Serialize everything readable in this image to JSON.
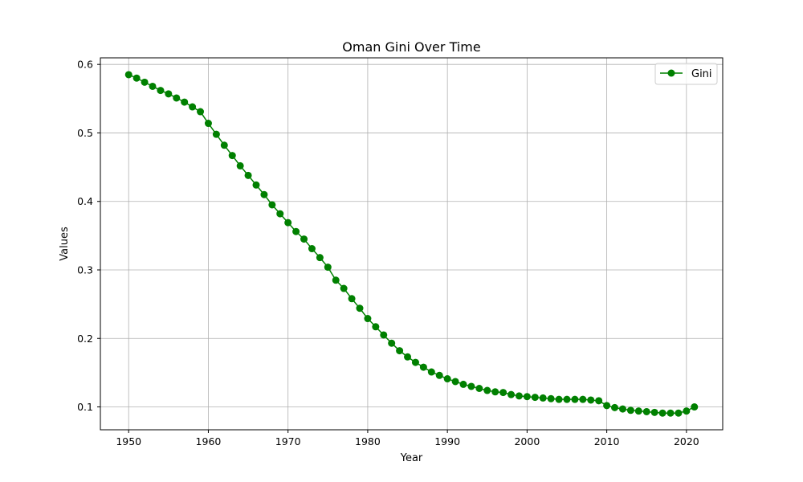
{
  "chart_data": {
    "type": "line",
    "title": "Oman Gini Over Time",
    "xlabel": "Year",
    "ylabel": "Values",
    "xlim": [
      1946.45,
      2024.55
    ],
    "ylim": [
      0.0666,
      0.6096
    ],
    "xticks": [
      1950,
      1960,
      1970,
      1980,
      1990,
      2000,
      2010,
      2020
    ],
    "yticks": [
      0.1,
      0.2,
      0.3,
      0.4,
      0.5,
      0.6
    ],
    "grid": true,
    "legend": {
      "placement": "top-right"
    },
    "series": [
      {
        "name": "Gini",
        "color": "#008000",
        "marker": "circle",
        "x": [
          1950,
          1951,
          1952,
          1953,
          1954,
          1955,
          1956,
          1957,
          1958,
          1959,
          1960,
          1961,
          1962,
          1963,
          1964,
          1965,
          1966,
          1967,
          1968,
          1969,
          1970,
          1971,
          1972,
          1973,
          1974,
          1975,
          1976,
          1977,
          1978,
          1979,
          1980,
          1981,
          1982,
          1983,
          1984,
          1985,
          1986,
          1987,
          1988,
          1989,
          1990,
          1991,
          1992,
          1993,
          1994,
          1995,
          1996,
          1997,
          1998,
          1999,
          2000,
          2001,
          2002,
          2003,
          2004,
          2005,
          2006,
          2007,
          2008,
          2009,
          2010,
          2011,
          2012,
          2013,
          2014,
          2015,
          2016,
          2017,
          2018,
          2019,
          2020,
          2021
        ],
        "y": [
          0.585,
          0.58,
          0.574,
          0.568,
          0.562,
          0.557,
          0.551,
          0.545,
          0.538,
          0.531,
          0.514,
          0.498,
          0.482,
          0.467,
          0.452,
          0.438,
          0.424,
          0.41,
          0.395,
          0.382,
          0.369,
          0.356,
          0.345,
          0.331,
          0.318,
          0.304,
          0.285,
          0.273,
          0.258,
          0.244,
          0.229,
          0.217,
          0.205,
          0.193,
          0.182,
          0.173,
          0.165,
          0.158,
          0.151,
          0.146,
          0.141,
          0.137,
          0.133,
          0.13,
          0.127,
          0.124,
          0.122,
          0.121,
          0.118,
          0.116,
          0.115,
          0.114,
          0.113,
          0.112,
          0.111,
          0.111,
          0.111,
          0.111,
          0.11,
          0.109,
          0.102,
          0.099,
          0.097,
          0.095,
          0.094,
          0.093,
          0.092,
          0.091,
          0.091,
          0.091,
          0.094,
          0.1
        ]
      }
    ]
  }
}
